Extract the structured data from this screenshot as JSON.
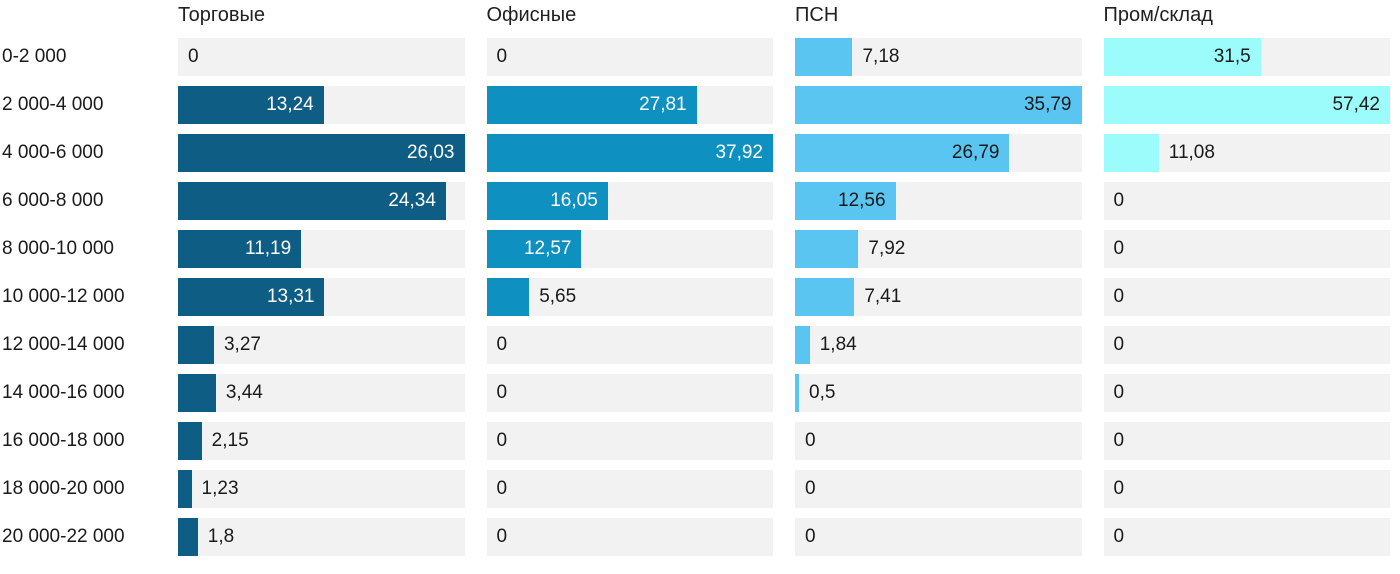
{
  "chart_data": {
    "type": "bar",
    "orientation": "horizontal",
    "title": "",
    "value_format": "decimal-comma",
    "grid": false,
    "legend": false,
    "track_color": "#f2f2f2",
    "text_color": "#1a1a1a",
    "categories": [
      "0-2 000",
      "2 000-4 000",
      "4 000-6 000",
      "6 000-8 000",
      "8 000-10 000",
      "10 000-12 000",
      "12 000-14 000",
      "14 000-16 000",
      "16 000-18 000",
      "18 000-20 000",
      "20 000-22 000"
    ],
    "series": [
      {
        "name": "Торговые",
        "color": "#0d5d85",
        "inside_label_color": "#ffffff",
        "axis_max": 26.03,
        "values": [
          0,
          13.24,
          26.03,
          24.34,
          11.19,
          13.31,
          3.27,
          3.44,
          2.15,
          1.23,
          1.8
        ],
        "display": [
          "0",
          "13,24",
          "26,03",
          "24,34",
          "11,19",
          "13,31",
          "3,27",
          "3,44",
          "2,15",
          "1,23",
          "1,8"
        ]
      },
      {
        "name": "Офисные",
        "color": "#0e91c1",
        "inside_label_color": "#ffffff",
        "axis_max": 37.92,
        "values": [
          0,
          27.81,
          37.92,
          16.05,
          12.57,
          5.65,
          0,
          0,
          0,
          0,
          0
        ],
        "display": [
          "0",
          "27,81",
          "37,92",
          "16,05",
          "12,57",
          "5,65",
          "0",
          "0",
          "0",
          "0",
          "0"
        ]
      },
      {
        "name": "ПСН",
        "color": "#5bc5f1",
        "inside_label_color": "#1a1a1a",
        "axis_max": 35.79,
        "values": [
          7.18,
          35.79,
          26.79,
          12.56,
          7.92,
          7.41,
          1.84,
          0.5,
          0,
          0,
          0
        ],
        "display": [
          "7,18",
          "35,79",
          "26,79",
          "12,56",
          "7,92",
          "7,41",
          "1,84",
          "0,5",
          "0",
          "0",
          "0"
        ]
      },
      {
        "name": "Пром/склад",
        "color": "#9cfcfc",
        "inside_label_color": "#1a1a1a",
        "axis_max": 57.42,
        "values": [
          31.5,
          57.42,
          11.08,
          0,
          0,
          0,
          0,
          0,
          0,
          0,
          0
        ],
        "display": [
          "31,5",
          "57,42",
          "11,08",
          "0",
          "0",
          "0",
          "0",
          "0",
          "0",
          "0",
          "0"
        ]
      }
    ]
  }
}
